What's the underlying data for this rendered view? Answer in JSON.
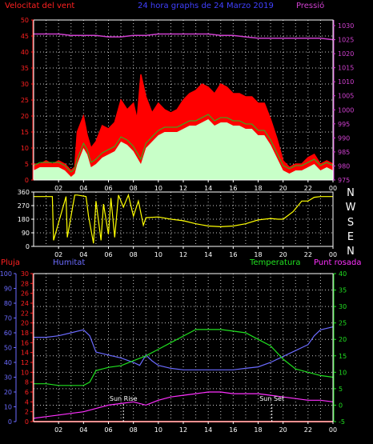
{
  "colors": {
    "wind": "#ff2020",
    "pressure": "#d040d0",
    "title": "#4040ff",
    "gust": "#ff0000",
    "avg_wind": "#c8ffc8",
    "dir": "#ffff00",
    "humidity": "#6b6bff",
    "temperature": "#20e020",
    "dew": "#ff30ff",
    "rain": "#ff2020",
    "grid": "#c8c8c8"
  },
  "chart_data": [
    {
      "type": "line",
      "title": "24 hora graphs de 24 Marzo 2019",
      "left_label": "Velocitat del vent",
      "right_label": "Pressió",
      "y_ticks": [
        0,
        5,
        10,
        15,
        20,
        25,
        30,
        35,
        40,
        45,
        50
      ],
      "y2_ticks": [
        975,
        980,
        985,
        990,
        995,
        1000,
        1005,
        1010,
        1015,
        1020,
        1025,
        1030
      ],
      "ylim": [
        0,
        50
      ],
      "y2lim": [
        975,
        1032
      ],
      "x_ticks": [
        "02",
        "04",
        "06",
        "08",
        "10",
        "12",
        "14",
        "16",
        "18",
        "20",
        "22",
        "00"
      ],
      "x_hours": [
        2,
        4,
        6,
        8,
        10,
        12,
        14,
        16,
        18,
        20,
        22,
        24
      ],
      "series": [
        {
          "name": "gust",
          "x": [
            0,
            0.5,
            1,
            1.5,
            2,
            2.5,
            3,
            3.3,
            3.5,
            4,
            4.3,
            4.6,
            5,
            5.5,
            6,
            6.5,
            7,
            7.5,
            8,
            8.3,
            8.6,
            9,
            9.5,
            10,
            10.5,
            11,
            11.5,
            12,
            12.5,
            13,
            13.5,
            14,
            14.5,
            15,
            15.5,
            16,
            16.5,
            17,
            17.5,
            18,
            18.5,
            19,
            19.5,
            20,
            20.5,
            21,
            21.5,
            22,
            22.5,
            23,
            23.5,
            24
          ],
          "y": [
            5,
            5,
            6,
            5,
            6,
            5,
            3,
            4,
            15,
            20,
            14,
            10,
            12,
            17,
            16,
            18,
            25,
            22,
            24,
            19,
            33,
            26,
            21,
            24,
            22,
            21,
            22,
            25,
            27,
            28,
            30,
            29,
            27,
            30,
            29,
            27,
            27,
            26,
            26,
            24,
            24,
            19,
            13,
            6,
            4,
            5,
            5,
            7,
            8,
            5,
            6,
            5
          ]
        },
        {
          "name": "avg",
          "x": [
            0,
            0.5,
            1,
            1.5,
            2,
            2.5,
            3,
            3.3,
            3.5,
            4,
            4.3,
            4.6,
            5,
            5.5,
            6,
            6.5,
            7,
            7.5,
            8,
            8.3,
            8.6,
            9,
            9.5,
            10,
            10.5,
            11,
            11.5,
            12,
            12.5,
            13,
            13.5,
            14,
            14.5,
            15,
            15.5,
            16,
            16.5,
            17,
            17.5,
            18,
            18.5,
            19,
            19.5,
            20,
            20.5,
            21,
            21.5,
            22,
            22.5,
            23,
            23.5,
            24
          ],
          "y": [
            3,
            4,
            4,
            4,
            4,
            3,
            1,
            2,
            5,
            10,
            8,
            4,
            5,
            7,
            8,
            9,
            12,
            11,
            9,
            7,
            5,
            10,
            12,
            14,
            15,
            15,
            15,
            16,
            17,
            17,
            18,
            19,
            17,
            18,
            18,
            17,
            17,
            16,
            16,
            14,
            14,
            11,
            7,
            3,
            2,
            3,
            3,
            4,
            5,
            3,
            4,
            3
          ]
        },
        {
          "name": "pressure",
          "x": [
            0,
            1,
            2,
            3,
            4,
            5,
            6,
            7,
            8,
            9,
            10,
            11,
            12,
            13,
            14,
            15,
            16,
            17,
            18,
            19,
            20,
            21,
            22,
            23,
            24
          ],
          "y": [
            1027,
            1027,
            1027,
            1026.5,
            1026.5,
            1026.5,
            1026,
            1026,
            1026.5,
            1026.5,
            1027,
            1027,
            1027,
            1027,
            1027,
            1026.5,
            1026.5,
            1026,
            1025.5,
            1025.5,
            1025.5,
            1025.5,
            1025.5,
            1025.5,
            1025
          ]
        }
      ]
    },
    {
      "type": "line",
      "right_labels": [
        "N",
        "W",
        "S",
        "E",
        "N"
      ],
      "y_ticks": [
        0,
        90,
        180,
        270,
        360
      ],
      "ylim": [
        0,
        360
      ],
      "x_ticks": [
        "02",
        "04",
        "06",
        "08",
        "10",
        "12",
        "14",
        "16",
        "18",
        "20",
        "22",
        "00"
      ],
      "series": [
        {
          "name": "direction",
          "x": [
            0,
            1.5,
            1.6,
            2.6,
            2.7,
            3.3,
            3.5,
            4.2,
            4.4,
            4.8,
            5.0,
            5.4,
            5.6,
            6.0,
            6.2,
            6.5,
            6.8,
            7.2,
            7.6,
            8.0,
            8.4,
            8.8,
            9,
            10,
            11,
            12,
            13,
            14,
            15,
            16,
            17,
            18,
            19,
            19.6,
            20,
            20.8,
            21,
            21.5,
            22,
            22.5,
            23,
            23.5,
            24
          ],
          "y": [
            330,
            330,
            40,
            330,
            60,
            340,
            340,
            330,
            200,
            20,
            300,
            40,
            280,
            80,
            320,
            60,
            340,
            260,
            340,
            200,
            300,
            140,
            190,
            195,
            180,
            170,
            150,
            135,
            130,
            135,
            150,
            175,
            185,
            180,
            180,
            230,
            250,
            300,
            300,
            325,
            330,
            330,
            330
          ]
        }
      ]
    },
    {
      "type": "line",
      "labels": {
        "rain": "Pluja",
        "humidity": "Humitat",
        "temperature": "Temperatura",
        "dew": "Punt rosada",
        "sunrise": "Sun Rise",
        "sunset": "Sun Set"
      },
      "humidity_ticks": [
        0,
        10,
        20,
        30,
        40,
        50,
        60,
        70,
        80,
        90,
        100
      ],
      "rain_ticks": [
        0,
        2,
        4,
        6,
        8,
        10,
        12,
        14,
        16,
        18,
        20,
        22,
        24,
        26,
        28,
        30
      ],
      "temp_ticks": [
        -5,
        0,
        5,
        10,
        15,
        20,
        25,
        30,
        35,
        40
      ],
      "humidity_lim": [
        0,
        100
      ],
      "temp_lim": [
        -5,
        40
      ],
      "x_ticks": [
        "02",
        "04",
        "06",
        "08",
        "10",
        "12",
        "14",
        "16",
        "18",
        "20",
        "22",
        "00"
      ],
      "sunrise_hour": 7.2,
      "sunset_hour": 19.1,
      "series": [
        {
          "name": "humidity",
          "x": [
            0,
            1,
            2,
            3,
            3.5,
            4,
            4.5,
            5,
            5.5,
            6,
            7,
            8,
            8.5,
            9,
            9.5,
            10,
            11,
            12,
            13,
            14,
            15,
            16,
            17,
            18,
            19,
            20,
            21,
            22,
            22.5,
            23,
            24
          ],
          "y": [
            57,
            57,
            58,
            60,
            61,
            62,
            58,
            47,
            46,
            45,
            43,
            40,
            38,
            45,
            41,
            38,
            36,
            35,
            35,
            35,
            35,
            35,
            36,
            37,
            40,
            44,
            48,
            52,
            58,
            62,
            64
          ]
        },
        {
          "name": "temperature",
          "x": [
            0,
            1,
            2,
            3,
            4,
            4.5,
            5,
            6,
            7,
            8,
            9,
            10,
            11,
            12,
            13,
            14,
            15,
            16,
            17,
            18,
            19,
            20,
            21,
            22,
            23,
            24
          ],
          "y": [
            6.5,
            6.5,
            6,
            6,
            6,
            7,
            10.5,
            11.5,
            12,
            13.5,
            15,
            17,
            19,
            21,
            23,
            23,
            23,
            22.5,
            22,
            20,
            18,
            14,
            11,
            10,
            9,
            8.5
          ]
        },
        {
          "name": "dew",
          "x": [
            0,
            1,
            2,
            3,
            4,
            5,
            6,
            7,
            8,
            9,
            10,
            11,
            12,
            13,
            14,
            15,
            16,
            17,
            18,
            19,
            20,
            21,
            22,
            23,
            24
          ],
          "y": [
            -4,
            -3.5,
            -3,
            -2.5,
            -2,
            -1,
            0,
            0.5,
            1,
            0,
            1.5,
            2.5,
            3,
            3.5,
            4,
            4,
            3.5,
            3.5,
            3.5,
            3,
            2.5,
            2,
            1.5,
            1.5,
            1
          ]
        },
        {
          "name": "rain",
          "x": [
            0,
            24
          ],
          "y": [
            0,
            0
          ]
        }
      ]
    }
  ]
}
